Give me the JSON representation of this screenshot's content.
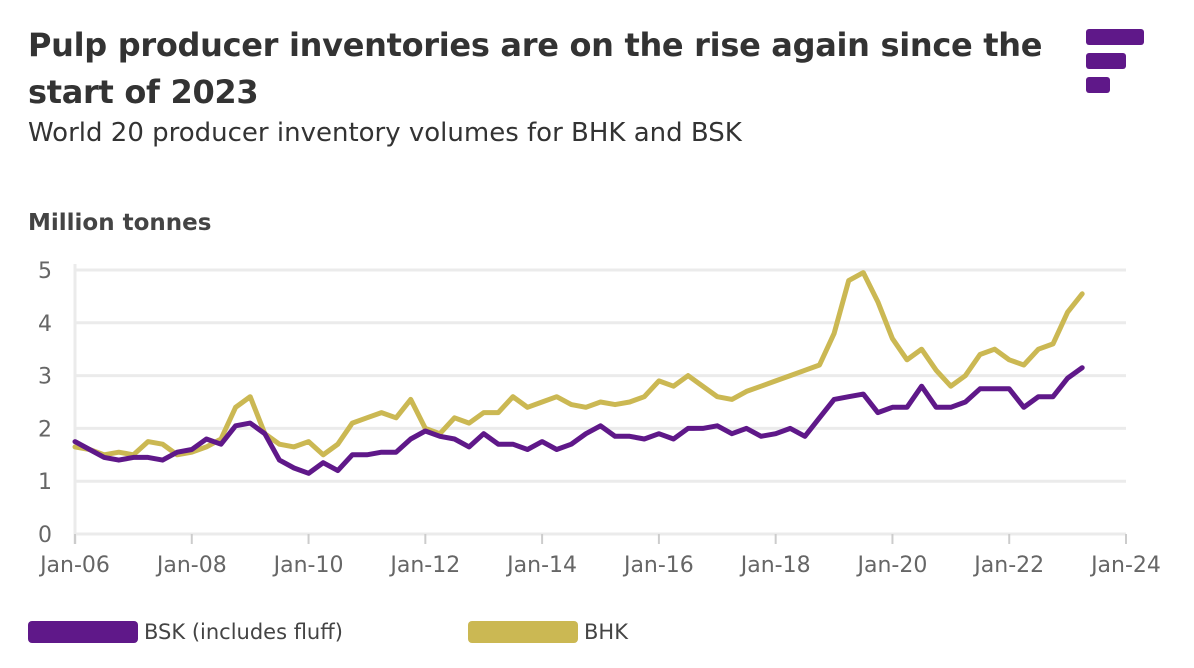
{
  "title": "Pulp producer inventories are on the rise again since the start of 2023",
  "subtitle": "World 20 producer inventory volumes for BHK and BSK",
  "logo": "F",
  "colors": {
    "bsk": "#5f1889",
    "bhk": "#cbb853",
    "grid": "#ebebeb",
    "logo": "#5f1889"
  },
  "chart_data": {
    "type": "line",
    "title": "Pulp producer inventories are on the rise again since the start of 2023",
    "ylabel": "Million tonnes",
    "ylim": [
      0,
      5
    ],
    "yticks": [
      "0",
      "1",
      "2",
      "3",
      "4",
      "5"
    ],
    "xlim": [
      "2006-01",
      "2024-01"
    ],
    "xticks": [
      "Jan-06",
      "Jan-08",
      "Jan-10",
      "Jan-12",
      "Jan-14",
      "Jan-16",
      "Jan-18",
      "Jan-20",
      "Jan-22",
      "Jan-24"
    ],
    "grid": true,
    "legend": "bottom",
    "x": [
      "2006-01",
      "2006-04",
      "2006-07",
      "2006-10",
      "2007-01",
      "2007-04",
      "2007-07",
      "2007-10",
      "2008-01",
      "2008-04",
      "2008-07",
      "2008-10",
      "2009-01",
      "2009-04",
      "2009-07",
      "2009-10",
      "2010-01",
      "2010-04",
      "2010-07",
      "2010-10",
      "2011-01",
      "2011-04",
      "2011-07",
      "2011-10",
      "2012-01",
      "2012-04",
      "2012-07",
      "2012-10",
      "2013-01",
      "2013-04",
      "2013-07",
      "2013-10",
      "2014-01",
      "2014-04",
      "2014-07",
      "2014-10",
      "2015-01",
      "2015-04",
      "2015-07",
      "2015-10",
      "2016-01",
      "2016-04",
      "2016-07",
      "2016-10",
      "2017-01",
      "2017-04",
      "2017-07",
      "2017-10",
      "2018-01",
      "2018-04",
      "2018-07",
      "2018-10",
      "2019-01",
      "2019-04",
      "2019-07",
      "2019-10",
      "2020-01",
      "2020-04",
      "2020-07",
      "2020-10",
      "2021-01",
      "2021-04",
      "2021-07",
      "2021-10",
      "2022-01",
      "2022-04",
      "2022-07",
      "2022-10",
      "2023-01",
      "2023-04"
    ],
    "series": [
      {
        "name": "BSK (includes fluff)",
        "color": "#5f1889",
        "values": [
          1.75,
          1.6,
          1.45,
          1.4,
          1.45,
          1.45,
          1.4,
          1.55,
          1.6,
          1.8,
          1.7,
          2.05,
          2.1,
          1.9,
          1.4,
          1.25,
          1.15,
          1.35,
          1.2,
          1.5,
          1.5,
          1.55,
          1.55,
          1.8,
          1.95,
          1.85,
          1.8,
          1.65,
          1.9,
          1.7,
          1.7,
          1.6,
          1.75,
          1.6,
          1.7,
          1.9,
          2.05,
          1.85,
          1.85,
          1.8,
          1.9,
          1.8,
          2.0,
          2.0,
          2.05,
          1.9,
          2.0,
          1.85,
          1.9,
          2.0,
          1.85,
          2.2,
          2.55,
          2.6,
          2.65,
          2.3,
          2.4,
          2.4,
          2.8,
          2.4,
          2.4,
          2.5,
          2.75,
          2.75,
          2.75,
          2.4,
          2.6,
          2.6,
          2.95,
          3.15
        ]
      },
      {
        "name": "BHK",
        "color": "#cbb853",
        "values": [
          1.65,
          1.6,
          1.5,
          1.55,
          1.5,
          1.75,
          1.7,
          1.5,
          1.55,
          1.65,
          1.8,
          2.4,
          2.6,
          1.9,
          1.7,
          1.65,
          1.75,
          1.5,
          1.7,
          2.1,
          2.2,
          2.3,
          2.2,
          2.55,
          2.0,
          1.9,
          2.2,
          2.1,
          2.3,
          2.3,
          2.6,
          2.4,
          2.5,
          2.6,
          2.45,
          2.4,
          2.5,
          2.45,
          2.5,
          2.6,
          2.9,
          2.8,
          3.0,
          2.8,
          2.6,
          2.55,
          2.7,
          2.8,
          2.9,
          3.0,
          3.1,
          3.2,
          3.8,
          4.8,
          4.95,
          4.4,
          3.7,
          3.3,
          3.5,
          3.1,
          2.8,
          3.0,
          3.4,
          3.5,
          3.3,
          3.2,
          3.5,
          3.6,
          4.2,
          4.55
        ]
      }
    ]
  }
}
